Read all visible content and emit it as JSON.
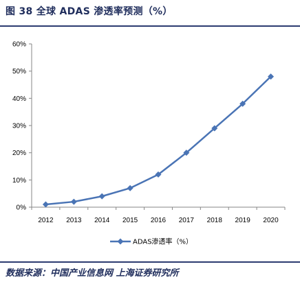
{
  "figure": {
    "title": "图 38 全球 ADAS 渗透率预测（%）",
    "source": "数据来源：中国产业信息网 上海证券研究所"
  },
  "chart_data": {
    "type": "line",
    "title": "",
    "xlabel": "",
    "ylabel": "",
    "x": [
      "2012",
      "2013",
      "2014",
      "2015",
      "2016",
      "2017",
      "2018",
      "2019",
      "2020"
    ],
    "series": [
      {
        "name": "ADAS渗透率（%）",
        "values": [
          1,
          2,
          4,
          7,
          12,
          20,
          29,
          38,
          48
        ],
        "color": "#4a74b5",
        "marker": "diamond"
      }
    ],
    "ylim": [
      0,
      60
    ],
    "yticks": [
      "0%",
      "10%",
      "20%",
      "30%",
      "40%",
      "50%",
      "60%"
    ],
    "grid": false,
    "legend": "bottom-center"
  }
}
